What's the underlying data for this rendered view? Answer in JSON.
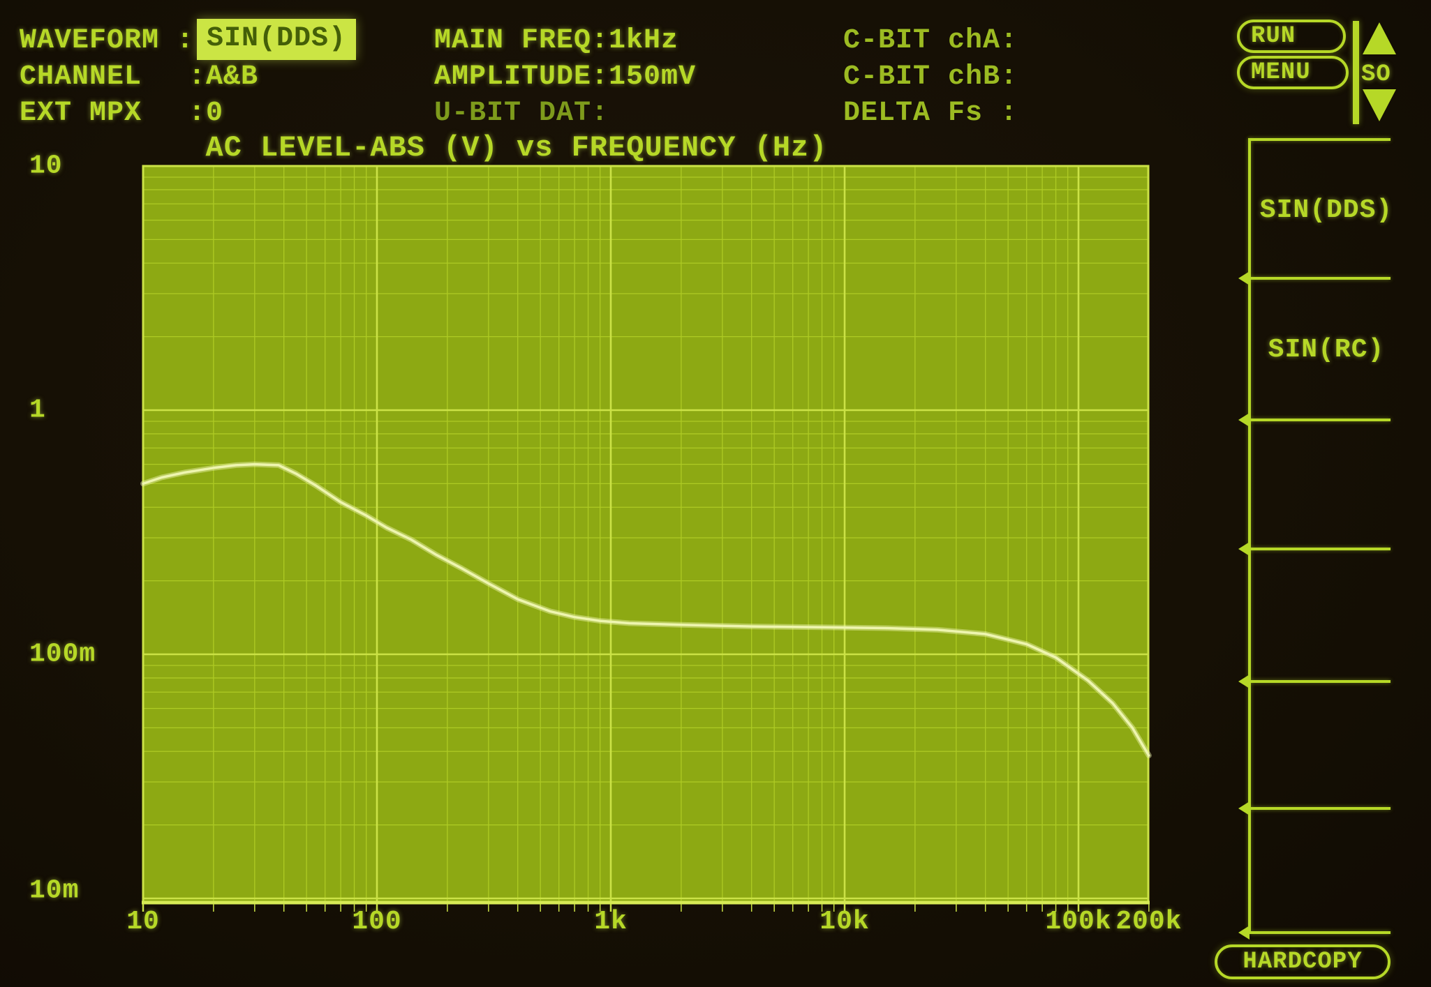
{
  "colors": {
    "background": "#161005",
    "accent_green": "#b6d827",
    "dim_green": "#7e9b1c",
    "plot_fill": "#8da913",
    "grid_minor": "#aecb24",
    "grid_major": "#cbe246",
    "trace": "#eef5b0",
    "highlight_bg": "#cbe544"
  },
  "top_panel": {
    "waveform_label": "WAVEFORM :",
    "waveform_value": "SIN(DDS)",
    "channel_label": "CHANNEL",
    "channel_value": ":A&B",
    "ext_mpx_label": "EXT MPX",
    "ext_mpx_value": ":0",
    "main_freq": "MAIN FREQ:1kHz",
    "amplitude": "AMPLITUDE:150mV",
    "u_bit": "U-BIT DAT:",
    "c_bit_cha": "C-BIT chA:",
    "c_bit_chb": "C-BIT chB:",
    "delta_fs": "DELTA Fs :"
  },
  "controls": {
    "run": "RUN",
    "menu": "MENU",
    "scroll_label": "SO",
    "hardcopy": "HARDCOPY"
  },
  "softkeys": {
    "key1": "SIN(DDS)",
    "key2": "SIN(RC)",
    "key3": "",
    "key4": "",
    "key5": "",
    "key6": ""
  },
  "chart_data": {
    "type": "line",
    "title": "AC LEVEL-ABS (V) vs FREQUENCY (Hz)",
    "xlabel": "FREQUENCY (Hz)",
    "ylabel": "AC LEVEL-ABS (V)",
    "x_axis": {
      "scale": "log",
      "min": 10,
      "max": 200000,
      "unit": "Hz"
    },
    "y_axis": {
      "scale": "log",
      "min": 0.0097,
      "max": 10,
      "unit": "V"
    },
    "grid": "log-log, minor lines at 2-9 of each decade",
    "x_ticks": [
      {
        "label": "10",
        "f": 10
      },
      {
        "label": "100",
        "f": 100
      },
      {
        "label": "1k",
        "f": 1000
      },
      {
        "label": "10k",
        "f": 10000
      },
      {
        "label": "100k",
        "f": 100000
      },
      {
        "label": "200k",
        "f": 200000
      }
    ],
    "y_ticks": [
      {
        "label": "10",
        "v": 10
      },
      {
        "label": "1",
        "v": 1
      },
      {
        "label": "100m",
        "v": 0.1
      },
      {
        "label": "10m",
        "v": 0.01
      }
    ],
    "series": [
      {
        "name": "AC LEVEL-ABS sweep",
        "points": [
          [
            10,
            0.5
          ],
          [
            12,
            0.53
          ],
          [
            15,
            0.555
          ],
          [
            20,
            0.58
          ],
          [
            25,
            0.595
          ],
          [
            30,
            0.6
          ],
          [
            38,
            0.595
          ],
          [
            45,
            0.55
          ],
          [
            55,
            0.49
          ],
          [
            70,
            0.42
          ],
          [
            90,
            0.37
          ],
          [
            110,
            0.33
          ],
          [
            140,
            0.295
          ],
          [
            180,
            0.255
          ],
          [
            230,
            0.225
          ],
          [
            300,
            0.195
          ],
          [
            400,
            0.168
          ],
          [
            550,
            0.15
          ],
          [
            700,
            0.142
          ],
          [
            900,
            0.137
          ],
          [
            1200,
            0.134
          ],
          [
            2000,
            0.132
          ],
          [
            4000,
            0.13
          ],
          [
            8000,
            0.129
          ],
          [
            15000,
            0.128
          ],
          [
            25000,
            0.126
          ],
          [
            40000,
            0.121
          ],
          [
            60000,
            0.11
          ],
          [
            80000,
            0.097
          ],
          [
            110000,
            0.078
          ],
          [
            140000,
            0.063
          ],
          [
            170000,
            0.05
          ],
          [
            200000,
            0.0385
          ]
        ]
      }
    ]
  }
}
